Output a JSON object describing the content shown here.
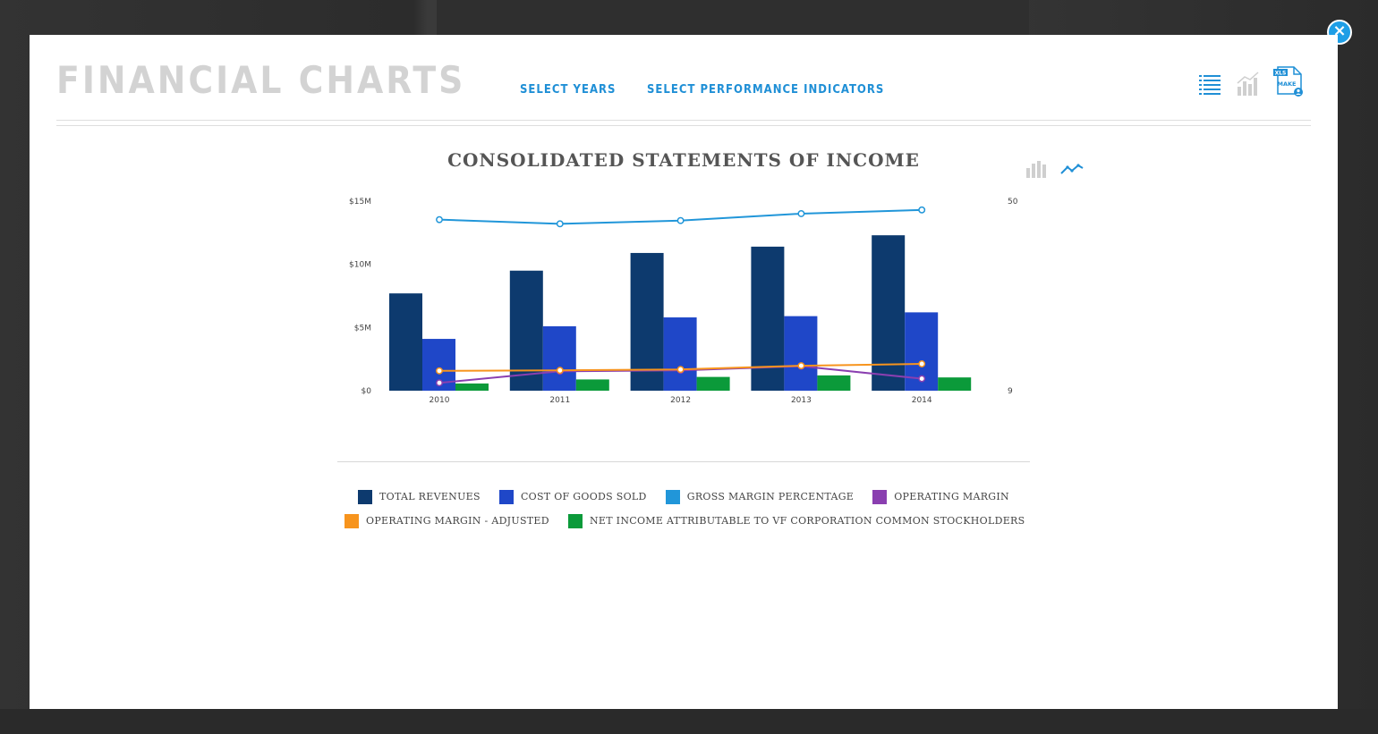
{
  "modal": {
    "title": "FINANCIAL CHARTS",
    "menu": {
      "select_years": "SELECT YEARS",
      "select_indicators": "SELECT PERFORMANCE INDICATORS"
    },
    "tools": {
      "xls_top": "XLS",
      "xls_bottom": "MAKE"
    },
    "close_label": "×"
  },
  "chart_data": {
    "type": "bar",
    "title": "CONSOLIDATED STATEMENTS OF INCOME",
    "categories": [
      "2010",
      "2011",
      "2012",
      "2013",
      "2014"
    ],
    "y_left": {
      "ticks": [
        "$0",
        "$5M",
        "$10M",
        "$15M"
      ],
      "ylim": [
        0,
        15
      ]
    },
    "y_right": {
      "ticks": [
        "9",
        "50"
      ],
      "ylim": [
        9,
        50
      ]
    },
    "series": [
      {
        "name": "TOTAL REVENUES",
        "type": "bar",
        "axis": "left",
        "color": "#0d3a6e",
        "values": [
          7.7,
          9.5,
          10.9,
          11.4,
          12.3
        ]
      },
      {
        "name": "COST OF GOODS SOLD",
        "type": "bar",
        "axis": "left",
        "color": "#1f47c8",
        "values": [
          4.1,
          5.1,
          5.8,
          5.9,
          6.2
        ]
      },
      {
        "name": "GROSS MARGIN PERCENTAGE",
        "type": "line",
        "axis": "right",
        "color": "#2196d9",
        "values": [
          46.0,
          45.1,
          45.8,
          47.3,
          48.1
        ]
      },
      {
        "name": "OPERATING MARGIN",
        "type": "line",
        "axis": "right",
        "color": "#8a3fb0",
        "values": [
          10.7,
          13.2,
          13.4,
          14.3,
          11.6
        ]
      },
      {
        "name": "OPERATING MARGIN - ADJUSTED",
        "type": "line",
        "axis": "right",
        "color": "#f7941d",
        "values": [
          13.3,
          13.4,
          13.6,
          14.4,
          14.8
        ]
      },
      {
        "name": "NET INCOME ATTRIBUTABLE TO VF CORPORATION COMMON STOCKHOLDERS",
        "type": "bar",
        "axis": "left",
        "color": "#0b9a3a",
        "values": [
          0.57,
          0.89,
          1.09,
          1.21,
          1.05
        ]
      }
    ]
  },
  "legend": {
    "row1": [
      {
        "label": "TOTAL REVENUES",
        "color": "#0d3a6e"
      },
      {
        "label": "COST OF GOODS SOLD",
        "color": "#1f47c8"
      },
      {
        "label": "GROSS MARGIN PERCENTAGE",
        "color": "#2196d9"
      },
      {
        "label": "OPERATING MARGIN",
        "color": "#8a3fb0"
      }
    ],
    "row2": [
      {
        "label": "OPERATING MARGIN - ADJUSTED",
        "color": "#f7941d"
      },
      {
        "label": "NET INCOME ATTRIBUTABLE TO VF CORPORATION COMMON STOCKHOLDERS",
        "color": "#0b9a3a"
      }
    ]
  },
  "colors": {
    "accent": "#1f8fd6",
    "muted": "#cfcfcf"
  }
}
